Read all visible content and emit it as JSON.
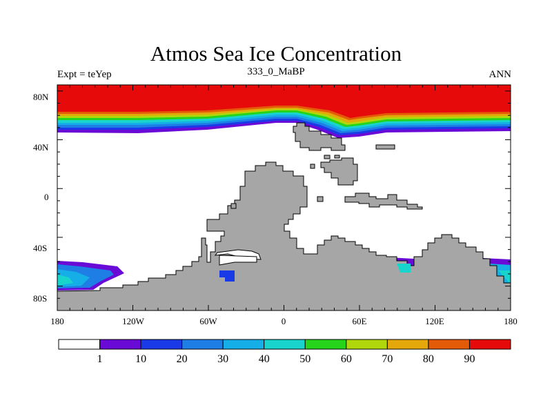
{
  "map": {
    "title": "Atmos Sea Ice Concentration",
    "subtitle_left": "Expt = teYep",
    "subtitle_center": "333_0_MaBP",
    "subtitle_right": "ANN",
    "lat_ticks": [
      "80N",
      "40N",
      "0",
      "40S",
      "80S"
    ],
    "lon_ticks": [
      "180",
      "120W",
      "60W",
      "0",
      "60E",
      "120E",
      "180"
    ],
    "land_color": "#a6a6a6",
    "ocean_color": "#ffffff"
  },
  "colorbar": {
    "labels": [
      "1",
      "10",
      "20",
      "30",
      "40",
      "50",
      "60",
      "70",
      "80",
      "90"
    ],
    "colors": [
      "#ffffff",
      "#6a0ad6",
      "#1a3ae8",
      "#1e7ee6",
      "#16aee6",
      "#18d4cc",
      "#27d41c",
      "#b0d70c",
      "#e4a80a",
      "#e35a07",
      "#e60a0a"
    ]
  }
}
